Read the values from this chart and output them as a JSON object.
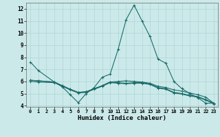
{
  "xlabel": "Humidex (Indice chaleur)",
  "bg_color": "#cce9e9",
  "grid_color": "#aad4d4",
  "line_color": "#1a6b6b",
  "xlim_min": -0.5,
  "xlim_max": 23.5,
  "ylim_min": 3.9,
  "ylim_max": 12.5,
  "yticks": [
    4,
    5,
    6,
    7,
    8,
    9,
    10,
    11,
    12
  ],
  "xticks": [
    0,
    1,
    2,
    3,
    4,
    5,
    6,
    7,
    8,
    9,
    10,
    11,
    12,
    13,
    14,
    15,
    16,
    17,
    18,
    19,
    20,
    21,
    22,
    23
  ],
  "line1_x": [
    0,
    1,
    3,
    4,
    5,
    6,
    7,
    8,
    9,
    10,
    11,
    12,
    13,
    14,
    15,
    16,
    17,
    18,
    19,
    20,
    21,
    22,
    23
  ],
  "line1_y": [
    7.6,
    6.9,
    5.95,
    5.55,
    4.9,
    4.25,
    5.0,
    5.5,
    6.35,
    6.6,
    8.65,
    11.1,
    12.3,
    11.0,
    9.7,
    7.85,
    7.5,
    6.0,
    5.4,
    5.0,
    4.65,
    4.2,
    4.2
  ],
  "line2_x": [
    0,
    1,
    3,
    4,
    5,
    6,
    7,
    8,
    9,
    10,
    11,
    12,
    13,
    14,
    15,
    16,
    17,
    18,
    19,
    20,
    21,
    22,
    23
  ],
  "line2_y": [
    6.1,
    6.05,
    5.95,
    5.65,
    5.35,
    5.1,
    5.15,
    5.4,
    5.65,
    5.95,
    6.0,
    6.05,
    6.0,
    5.95,
    5.85,
    5.6,
    5.5,
    5.3,
    5.2,
    5.05,
    4.9,
    4.7,
    4.2
  ],
  "line3_x": [
    0,
    1,
    3,
    4,
    5,
    6,
    7,
    8,
    9,
    10,
    11,
    12,
    13,
    14,
    15,
    16,
    17,
    18,
    19,
    20,
    21,
    22,
    23
  ],
  "line3_y": [
    6.1,
    6.05,
    5.95,
    5.65,
    5.35,
    5.1,
    5.15,
    5.4,
    5.65,
    5.95,
    5.9,
    5.85,
    5.9,
    5.9,
    5.8,
    5.5,
    5.4,
    5.1,
    5.0,
    4.85,
    4.75,
    4.5,
    4.2
  ],
  "line4_x": [
    0,
    1,
    3,
    4,
    5,
    6,
    7,
    8,
    9,
    10,
    11,
    12,
    13,
    14,
    15,
    16,
    17,
    18,
    19,
    20,
    21,
    22,
    23
  ],
  "line4_y": [
    6.0,
    5.95,
    5.9,
    5.6,
    5.3,
    5.05,
    5.1,
    5.35,
    5.6,
    5.9,
    5.85,
    5.8,
    5.85,
    5.85,
    5.75,
    5.45,
    5.35,
    5.05,
    4.95,
    4.8,
    4.7,
    4.45,
    4.15
  ]
}
